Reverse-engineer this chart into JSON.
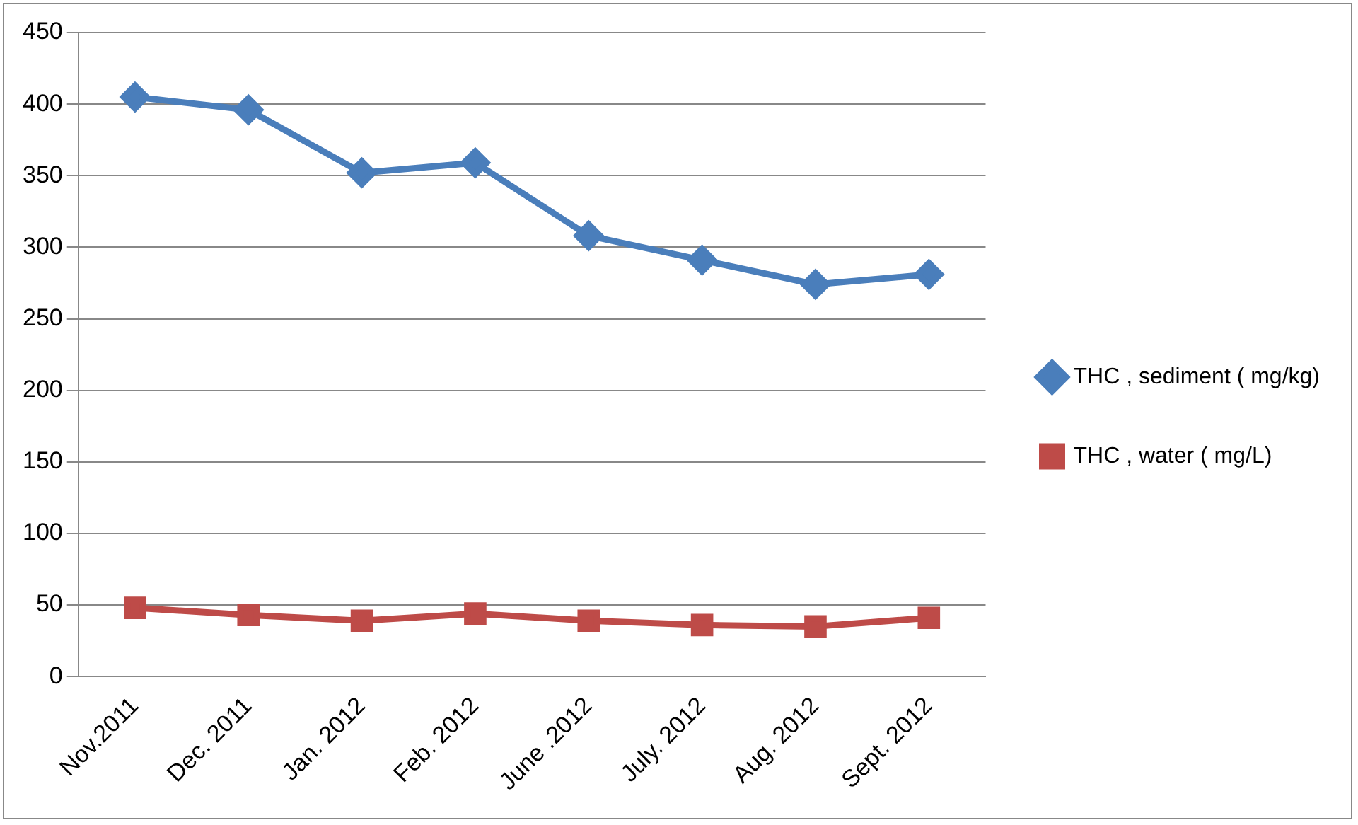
{
  "chart_data": {
    "type": "line",
    "categories": [
      "Nov.2011",
      "Dec. 2011",
      "Jan. 2012",
      "Feb. 2012",
      "June .2012",
      "July. 2012",
      "Aug. 2012",
      "Sept. 2012"
    ],
    "series": [
      {
        "name": "THC , sediment ( mg/kg)",
        "color": "#4a7ebb",
        "marker": "diamond",
        "values": [
          405,
          396,
          352,
          359,
          308,
          291,
          274,
          281
        ]
      },
      {
        "name": "THC , water ( mg/L)",
        "color": "#be4b48",
        "marker": "square",
        "values": [
          48,
          43,
          39,
          44,
          39,
          36,
          35,
          41
        ]
      }
    ],
    "ylim": [
      0,
      450
    ],
    "yticks": [
      0,
      50,
      100,
      150,
      200,
      250,
      300,
      350,
      400,
      450
    ],
    "grid": "y",
    "legend": "right",
    "line_style": "solid"
  }
}
